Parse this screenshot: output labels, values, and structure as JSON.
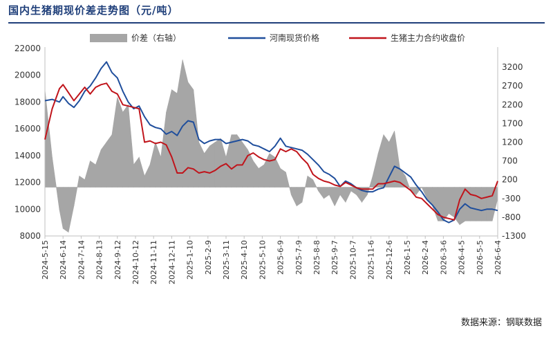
{
  "chart_data": {
    "type": "line",
    "title": "国内生猪期现价差走势图（元/吨）",
    "source": "数据来源：钢联数据",
    "left_axis": {
      "ylim": [
        8000,
        22000
      ],
      "ticks": [
        8000,
        10000,
        12000,
        14000,
        16000,
        18000,
        20000,
        22000
      ]
    },
    "right_axis": {
      "ylim": [
        -1300,
        3700
      ],
      "ticks": [
        -1300,
        -800,
        -300,
        200,
        700,
        1200,
        1700,
        2200,
        2700,
        3200
      ]
    },
    "x_ticks": [
      "2024-5-15",
      "2024-6-14",
      "2024-7-14",
      "2024-8-13",
      "2024-9-12",
      "2024-10-12",
      "2024-11-11",
      "2024-12-11",
      "2025-1-10",
      "2025-2-9",
      "2025-3-11",
      "2025-4-10",
      "2025-5-10",
      "2025-6-9",
      "2025-7-9",
      "2025-8-8",
      "2025-9-7",
      "2025-10-7",
      "2025-11-6",
      "2025-12-6",
      "2026-1-5",
      "2026-2-4",
      "2026-3-6",
      "2026-4-5",
      "2026-5-5",
      "2026-6-4"
    ],
    "legend_position": "top",
    "series": [
      {
        "name": "价差（右轴）",
        "type": "area",
        "axis": "right",
        "color": "#a6a6a6",
        "x": [
          0,
          0.4,
          0.8,
          1.0,
          1.3,
          1.6,
          1.9,
          2.2,
          2.5,
          2.8,
          3.1,
          3.4,
          3.7,
          4.0,
          4.3,
          4.6,
          4.9,
          5.2,
          5.5,
          5.8,
          6.1,
          6.4,
          6.7,
          7.0,
          7.3,
          7.6,
          7.9,
          8.2,
          8.5,
          8.8,
          9.1,
          9.4,
          9.7,
          10.0,
          10.3,
          10.6,
          10.9,
          11.2,
          11.5,
          11.8,
          12.1,
          12.4,
          12.7,
          13.0,
          13.3,
          13.6,
          13.9,
          14.2,
          14.5,
          14.8,
          15.1,
          15.4,
          15.7,
          16.0,
          16.3,
          16.6,
          16.9,
          17.2,
          17.5,
          17.8,
          18.1,
          18.4,
          18.7,
          19.0,
          19.3,
          19.6,
          19.9,
          20.2,
          20.5,
          20.8,
          21.1,
          21.4,
          21.7,
          22.0,
          22.3,
          22.6,
          22.9,
          23.2,
          23.5,
          23.8,
          24.1,
          24.4,
          24.7,
          25.0
        ],
        "values": [
          2600,
          800,
          -600,
          -1100,
          -1200,
          -500,
          300,
          200,
          700,
          600,
          1000,
          1200,
          1400,
          2400,
          2000,
          2200,
          600,
          800,
          300,
          600,
          1200,
          800,
          2000,
          2600,
          2500,
          3400,
          2800,
          2600,
          1200,
          900,
          1100,
          1200,
          1300,
          800,
          1400,
          1400,
          1200,
          1000,
          700,
          500,
          600,
          900,
          800,
          500,
          400,
          -200,
          -500,
          -400,
          300,
          200,
          -100,
          -300,
          -200,
          -500,
          -200,
          -400,
          -100,
          -200,
          -400,
          -200,
          300,
          900,
          1400,
          1200,
          1500,
          500,
          300,
          -100,
          -200,
          0,
          -300,
          -500,
          -900,
          -900,
          -700,
          -800,
          -1000,
          -900,
          -900,
          -900,
          -900,
          -900,
          -900,
          -300
        ]
      },
      {
        "name": "河南现货价格",
        "type": "line",
        "axis": "left",
        "color": "#1f4e9c",
        "x": [
          0,
          0.4,
          0.8,
          1.0,
          1.3,
          1.6,
          1.9,
          2.2,
          2.5,
          2.8,
          3.1,
          3.4,
          3.7,
          4.0,
          4.3,
          4.6,
          4.9,
          5.2,
          5.5,
          5.8,
          6.1,
          6.4,
          6.7,
          7.0,
          7.3,
          7.6,
          7.9,
          8.2,
          8.5,
          8.8,
          9.1,
          9.4,
          9.7,
          10.0,
          10.3,
          10.6,
          10.9,
          11.2,
          11.5,
          11.8,
          12.1,
          12.4,
          12.7,
          13.0,
          13.3,
          13.6,
          13.9,
          14.2,
          14.5,
          14.8,
          15.1,
          15.4,
          15.7,
          16.0,
          16.3,
          16.6,
          16.9,
          17.2,
          17.5,
          17.8,
          18.1,
          18.4,
          18.7,
          19.0,
          19.3,
          19.6,
          19.9,
          20.2,
          20.5,
          20.8,
          21.1,
          21.4,
          21.7,
          22.0,
          22.3,
          22.6,
          22.9,
          23.2,
          23.5,
          23.8,
          24.1,
          24.4,
          24.7,
          25.0
        ],
        "values": [
          18100,
          18200,
          18000,
          18400,
          17900,
          17600,
          18100,
          18800,
          19200,
          19800,
          20500,
          21000,
          20200,
          19800,
          18800,
          18000,
          17500,
          17700,
          16900,
          16300,
          16100,
          16000,
          15600,
          15800,
          15500,
          16200,
          16600,
          16500,
          15200,
          14900,
          15100,
          15200,
          15200,
          14900,
          15000,
          15100,
          15200,
          15100,
          14800,
          14700,
          14500,
          14300,
          14700,
          15300,
          14700,
          14600,
          14500,
          14400,
          14100,
          13700,
          13300,
          12800,
          12600,
          12300,
          11700,
          12100,
          11900,
          11600,
          11400,
          11300,
          11300,
          11500,
          11600,
          12400,
          13200,
          13000,
          12700,
          12400,
          11800,
          11300,
          10700,
          10300,
          9800,
          9200,
          9000,
          9200,
          10000,
          10400,
          10100,
          10000,
          9900,
          10000,
          10000,
          9900
        ]
      },
      {
        "name": "生猪主力合约收盘价",
        "type": "line",
        "axis": "left",
        "color": "#c0141b",
        "x": [
          0,
          0.4,
          0.8,
          1.0,
          1.3,
          1.6,
          1.9,
          2.2,
          2.5,
          2.8,
          3.1,
          3.4,
          3.7,
          4.0,
          4.3,
          4.6,
          4.9,
          5.2,
          5.5,
          5.8,
          6.1,
          6.4,
          6.7,
          7.0,
          7.3,
          7.6,
          7.9,
          8.2,
          8.5,
          8.8,
          9.1,
          9.4,
          9.7,
          10.0,
          10.3,
          10.6,
          10.9,
          11.2,
          11.5,
          11.8,
          12.1,
          12.4,
          12.7,
          13.0,
          13.3,
          13.6,
          13.9,
          14.2,
          14.5,
          14.8,
          15.1,
          15.4,
          15.7,
          16.0,
          16.3,
          16.6,
          16.9,
          17.2,
          17.5,
          17.8,
          18.1,
          18.4,
          18.7,
          19.0,
          19.3,
          19.6,
          19.9,
          20.2,
          20.5,
          20.8,
          21.1,
          21.4,
          21.7,
          22.0,
          22.3,
          22.6,
          22.9,
          23.2,
          23.5,
          23.8,
          24.1,
          24.4,
          24.7,
          25.0
        ],
        "values": [
          15200,
          17500,
          19000,
          19300,
          18700,
          18100,
          18600,
          19100,
          18600,
          19100,
          19300,
          19400,
          18800,
          18600,
          17800,
          17700,
          17600,
          17500,
          15000,
          15100,
          14900,
          15000,
          14800,
          13900,
          12700,
          12700,
          13100,
          13000,
          12700,
          12800,
          12700,
          12900,
          13200,
          13400,
          13000,
          13300,
          13300,
          14000,
          14200,
          13900,
          13700,
          13600,
          13700,
          14500,
          14300,
          14500,
          14300,
          13800,
          13400,
          12600,
          12300,
          12100,
          12000,
          11800,
          11700,
          12000,
          11800,
          11600,
          11500,
          11500,
          11500,
          11900,
          11900,
          12000,
          12100,
          12000,
          11700,
          11400,
          10900,
          10800,
          10400,
          10000,
          9600,
          9400,
          9300,
          9200,
          10700,
          11500,
          11100,
          11000,
          10800,
          10900,
          11000,
          12100
        ]
      }
    ]
  }
}
